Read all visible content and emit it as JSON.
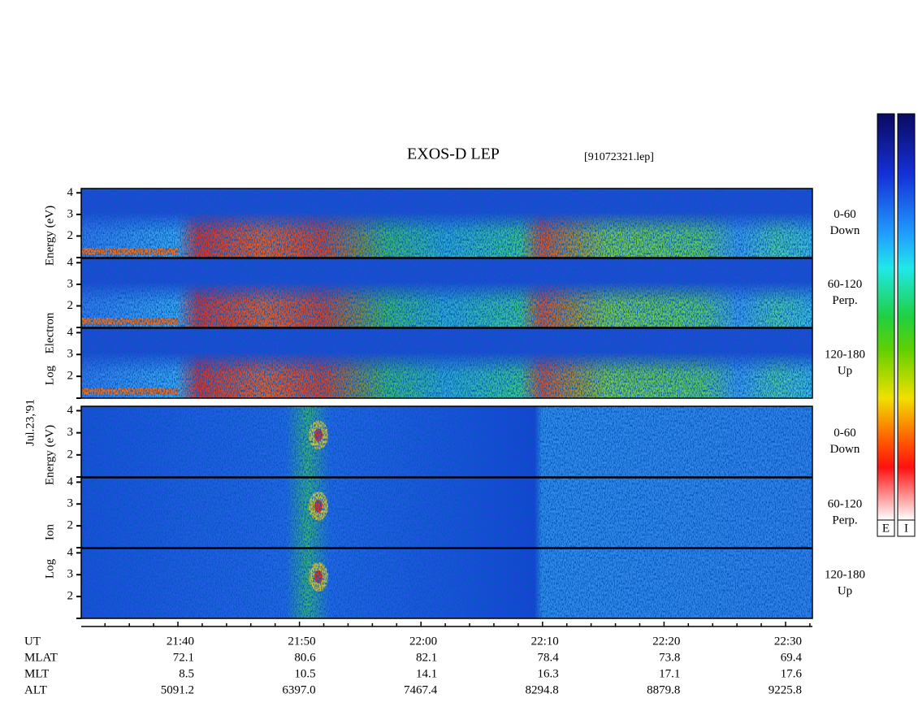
{
  "header": {
    "title": "EXOS-D LEP",
    "file": "[91072321.lep]"
  },
  "date": "Jul.23,'91",
  "groups": [
    {
      "ylabel": [
        "Energy (eV)",
        "Electron",
        "Log"
      ],
      "panels": [
        {
          "label": [
            "0-60",
            "Down"
          ],
          "ylim": [
            1,
            4.2
          ],
          "yticks": [
            2,
            3,
            4
          ]
        },
        {
          "label": [
            "60-120",
            "Perp."
          ],
          "ylim": [
            1,
            4.2
          ],
          "yticks": [
            2,
            3,
            4
          ]
        },
        {
          "label": [
            "120-180",
            "Up"
          ],
          "ylim": [
            1,
            4.2
          ],
          "yticks": [
            2,
            3,
            4
          ]
        }
      ]
    },
    {
      "ylabel": [
        "Energy (eV)",
        "Ion",
        "Log"
      ],
      "panels": [
        {
          "label": [
            "0-60",
            "Down"
          ],
          "ylim": [
            1,
            4.2
          ],
          "yticks": [
            2,
            3,
            4
          ]
        },
        {
          "label": [
            "60-120",
            "Perp."
          ],
          "ylim": [
            1,
            4.2
          ],
          "yticks": [
            2,
            3,
            4
          ]
        },
        {
          "label": [
            "120-180",
            "Up"
          ],
          "ylim": [
            1,
            4.2
          ],
          "yticks": [
            2,
            3,
            4
          ]
        }
      ]
    }
  ],
  "rows": [
    {
      "label": "UT",
      "values": [
        "21:40",
        "21:50",
        "22:00",
        "22:10",
        "22:20",
        "22:30"
      ]
    },
    {
      "label": "MLAT",
      "values": [
        "72.1",
        "80.6",
        "82.1",
        "78.4",
        "73.8",
        "69.4"
      ]
    },
    {
      "label": "MLT",
      "values": [
        "8.5",
        "10.5",
        "14.1",
        "16.3",
        "17.1",
        "17.6"
      ]
    },
    {
      "label": "ALT",
      "values": [
        "5091.2",
        "6397.0",
        "7467.4",
        "8294.8",
        "8879.8",
        "9225.8"
      ]
    }
  ],
  "colorbars": [
    "E",
    "I"
  ]
}
